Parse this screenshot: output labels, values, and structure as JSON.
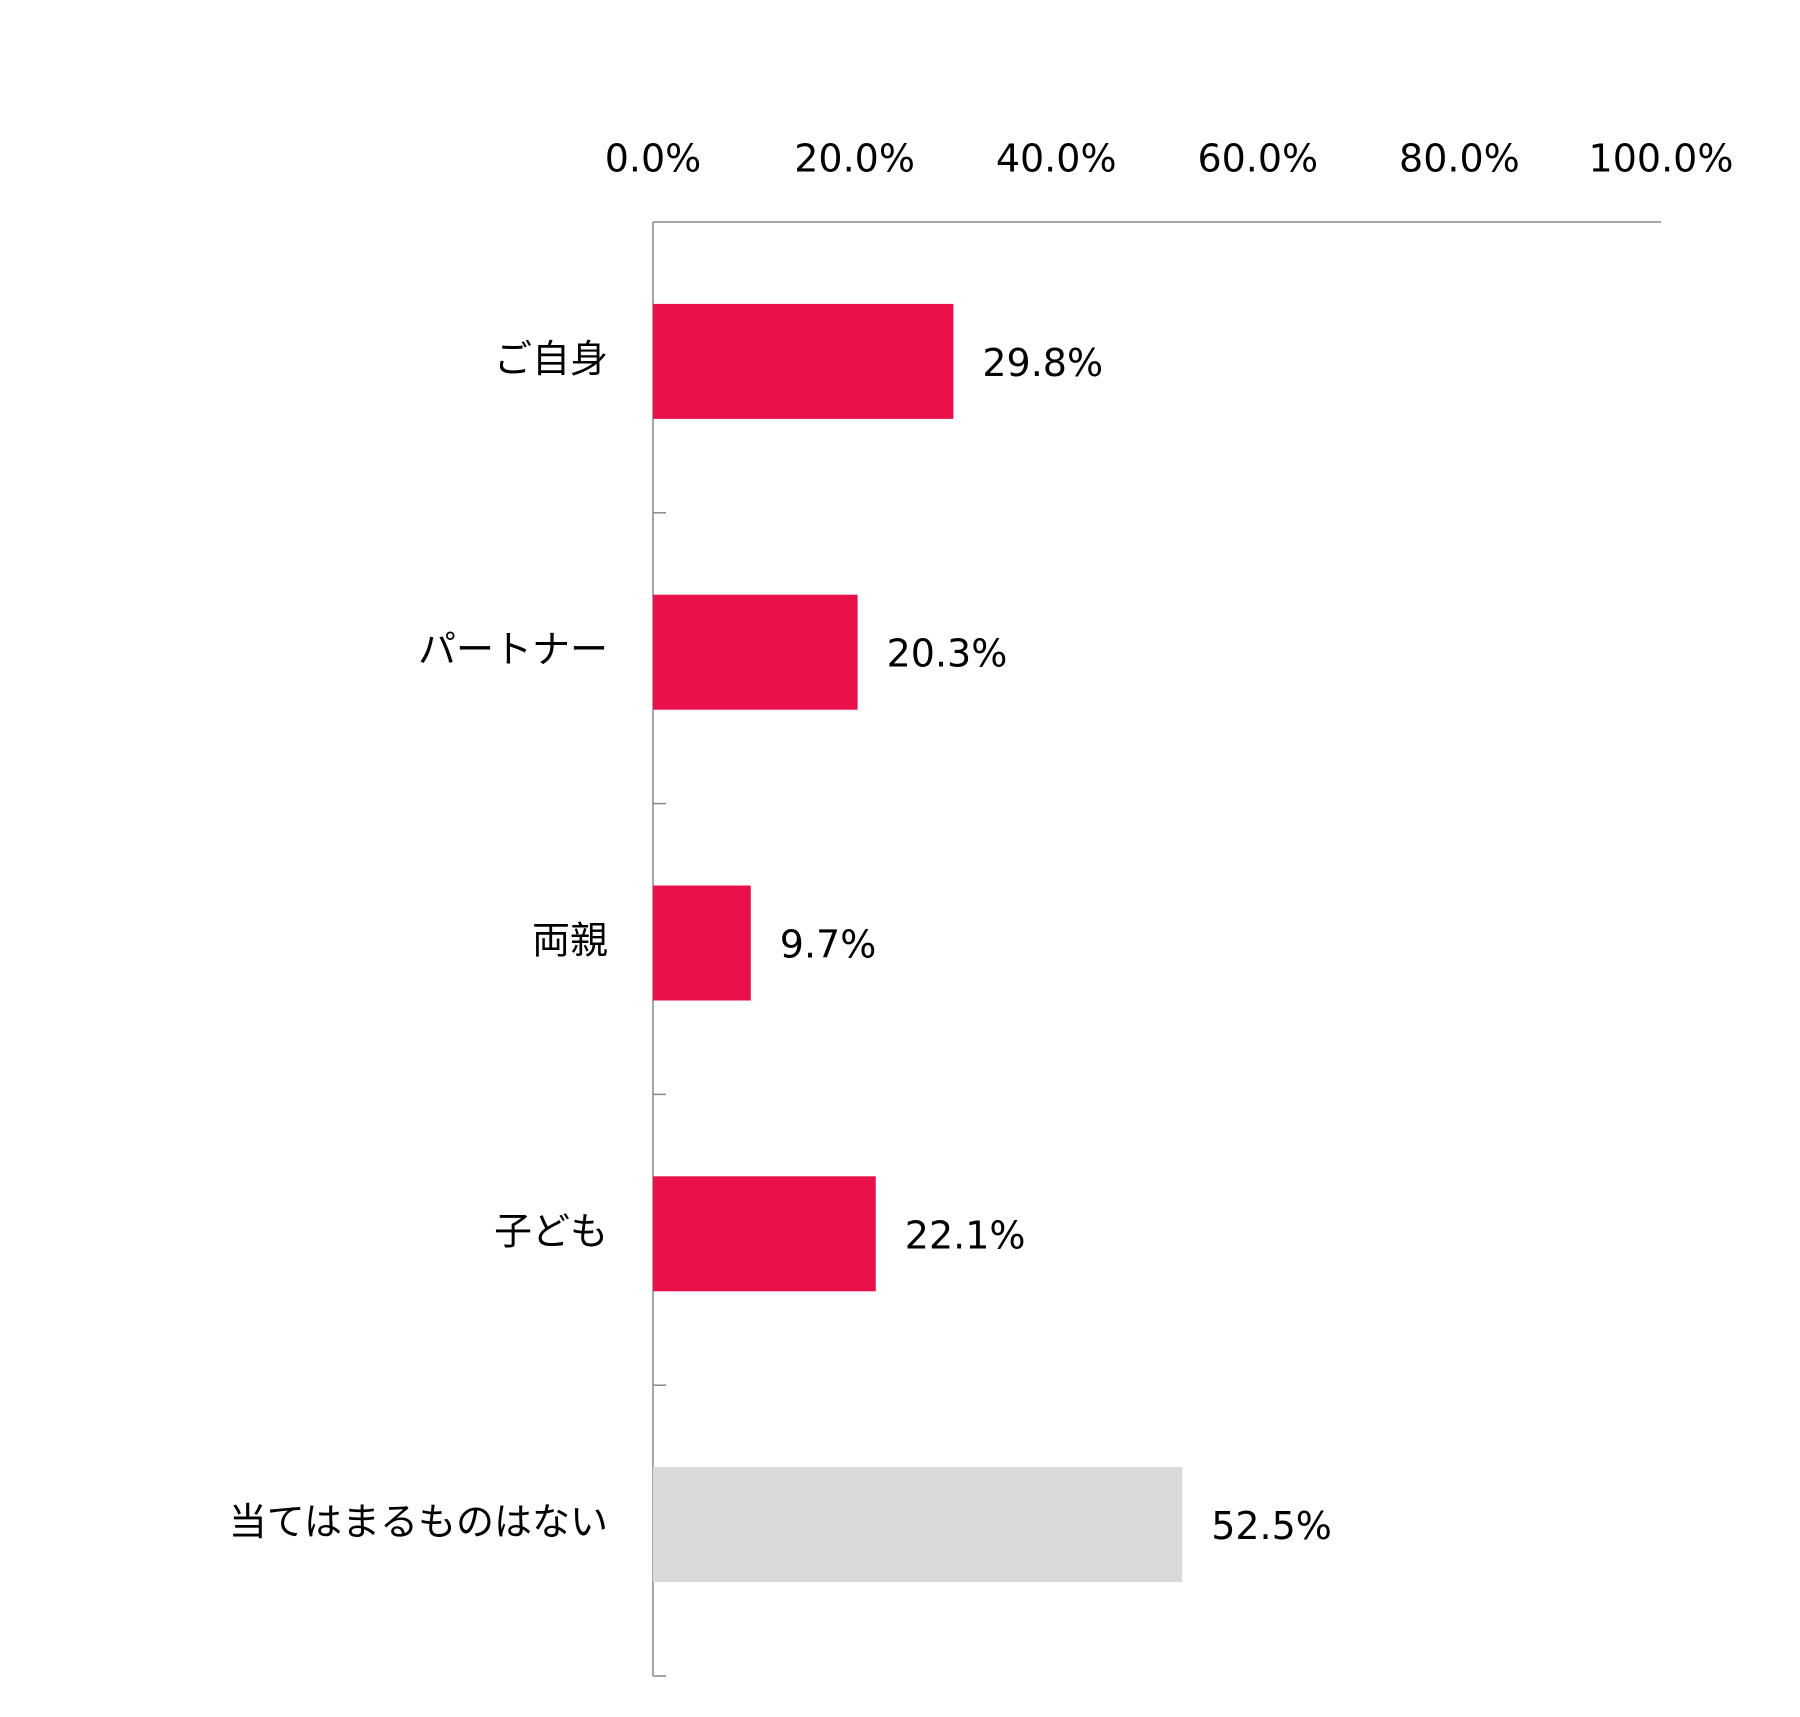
{
  "chart_data": {
    "type": "barh",
    "categories": [
      "ご自身",
      "パートナー",
      "両親",
      "子ども",
      "当てはまるものはない"
    ],
    "values": [
      29.8,
      20.3,
      9.7,
      22.1,
      52.5
    ],
    "value_labels": [
      "29.8%",
      "20.3%",
      "9.7%",
      "22.1%",
      "52.5%"
    ],
    "colors": [
      "#e8114a",
      "#e8114a",
      "#e8114a",
      "#e8114a",
      "#d9d9d9"
    ],
    "xlim": [
      0,
      100
    ],
    "xticks": [
      {
        "value": 0,
        "label": "0.0%"
      },
      {
        "value": 20,
        "label": "20.0%"
      },
      {
        "value": 40,
        "label": "40.0%"
      },
      {
        "value": 60,
        "label": "60.0%"
      },
      {
        "value": 80,
        "label": "80.0%"
      },
      {
        "value": 100,
        "label": "100.0%"
      }
    ],
    "grid": false
  }
}
